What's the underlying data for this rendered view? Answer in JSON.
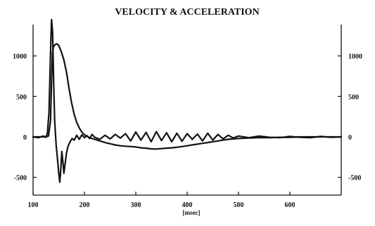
{
  "chart_data": {
    "type": "line",
    "title": "VELOCITY & ACCELERATION",
    "xlabel": "[msec]",
    "ylabel": "",
    "xlim": [
      100,
      700
    ],
    "ylim": [
      -650,
      1450
    ],
    "x_ticks": [
      100,
      200,
      300,
      400,
      500,
      600
    ],
    "y_ticks_left": [
      -500,
      0,
      500,
      1000
    ],
    "y_ticks_right": [
      -500,
      0,
      500,
      1000
    ],
    "grid": false,
    "colors": {
      "line": "#111111",
      "axis": "#111111",
      "background": "#ffffff"
    },
    "series": [
      {
        "x": [
          100,
          115,
          125,
          130,
          134,
          136,
          138,
          140,
          143,
          146,
          150,
          155,
          160,
          165,
          170,
          175,
          180,
          185,
          190,
          195,
          200,
          210,
          220,
          230,
          240,
          250,
          260,
          270,
          280,
          290,
          300,
          310,
          320,
          330,
          340,
          350,
          360,
          370,
          380,
          390,
          400,
          410,
          420,
          430,
          440,
          450,
          460,
          470,
          480,
          490,
          500,
          520,
          540,
          560,
          580,
          600,
          620,
          640,
          660,
          680,
          700
        ],
        "y": [
          0,
          0,
          0,
          10,
          200,
          700,
          1050,
          1120,
          1140,
          1150,
          1130,
          1050,
          950,
          800,
          600,
          420,
          280,
          180,
          110,
          60,
          25,
          -10,
          -30,
          -50,
          -70,
          -85,
          -100,
          -110,
          -115,
          -120,
          -125,
          -135,
          -140,
          -148,
          -150,
          -145,
          -140,
          -135,
          -128,
          -120,
          -110,
          -100,
          -90,
          -80,
          -70,
          -60,
          -50,
          -40,
          -30,
          -25,
          -20,
          -15,
          -10,
          -10,
          -5,
          -5,
          0,
          0,
          0,
          0,
          0
        ]
      },
      {
        "x": [
          100,
          110,
          120,
          125,
          128,
          131,
          133,
          135,
          136,
          138,
          140,
          142,
          145,
          148,
          150,
          152,
          154,
          156,
          158,
          160,
          162,
          165,
          168,
          172,
          176,
          180,
          185,
          190,
          195,
          200,
          205,
          210,
          215,
          220,
          230,
          240,
          250,
          260,
          270,
          280,
          290,
          300,
          310,
          320,
          330,
          340,
          350,
          360,
          370,
          380,
          390,
          400,
          410,
          420,
          430,
          440,
          450,
          460,
          470,
          480,
          490,
          500,
          520,
          540,
          560,
          580,
          600,
          620,
          640,
          660,
          680,
          700
        ],
        "y": [
          0,
          -10,
          10,
          -5,
          50,
          300,
          800,
          1250,
          1450,
          1300,
          700,
          200,
          -100,
          -300,
          -450,
          -560,
          -400,
          -180,
          -300,
          -450,
          -350,
          -200,
          -120,
          -60,
          -20,
          -40,
          20,
          -30,
          25,
          -10,
          15,
          -20,
          30,
          -5,
          -30,
          20,
          -25,
          30,
          -15,
          40,
          -50,
          60,
          -40,
          55,
          -60,
          65,
          -45,
          50,
          -60,
          45,
          -55,
          40,
          -30,
          35,
          -50,
          45,
          -40,
          30,
          -25,
          20,
          -15,
          10,
          -10,
          10,
          -5,
          -10,
          5,
          -5,
          -10,
          5,
          -5,
          0
        ]
      }
    ]
  }
}
